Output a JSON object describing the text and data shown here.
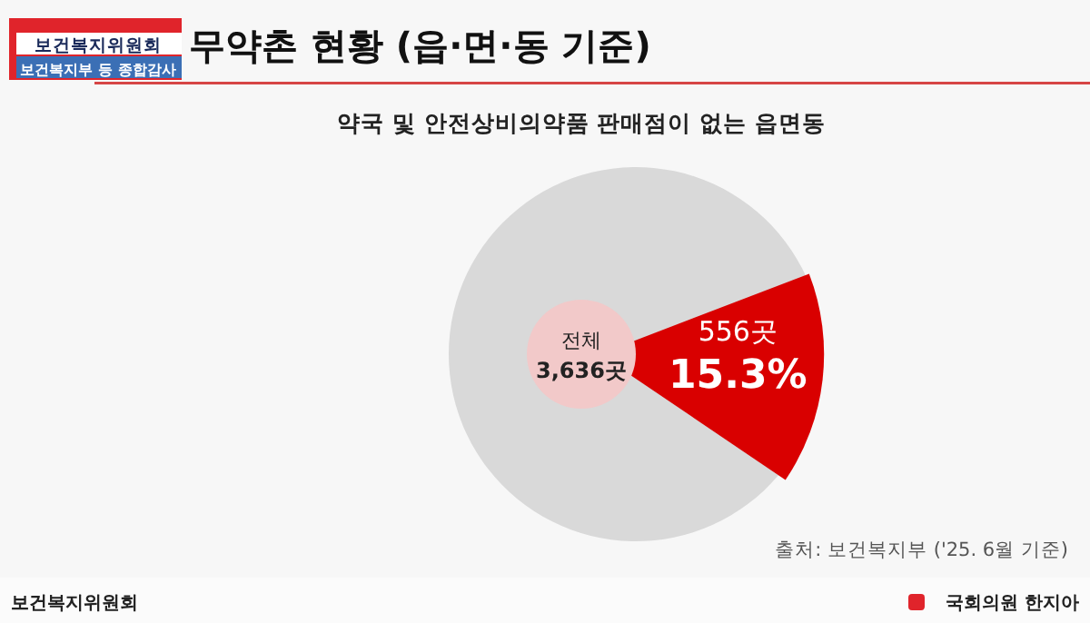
{
  "chart_data": {
    "type": "pie",
    "title": "무약촌 현황 (읍·면·동 기준)",
    "subtitle": "약국 및 안전상비의약품 판매점이 없는 읍면동",
    "categories": [
      null,
      "556곳"
    ],
    "values": [
      84.7,
      15.3
    ],
    "colors": [
      "#d9d9d9",
      "#d90000"
    ],
    "value_labels": [
      null,
      "15.3%"
    ],
    "annotations": [
      "전체",
      "3,636곳",
      "출처: 보건복지부 ('25. 6월 기준)",
      "보건복지위원회",
      "보건복지부 등 종합감사",
      "보건복지위원회",
      "국회의원 한지아"
    ]
  }
}
